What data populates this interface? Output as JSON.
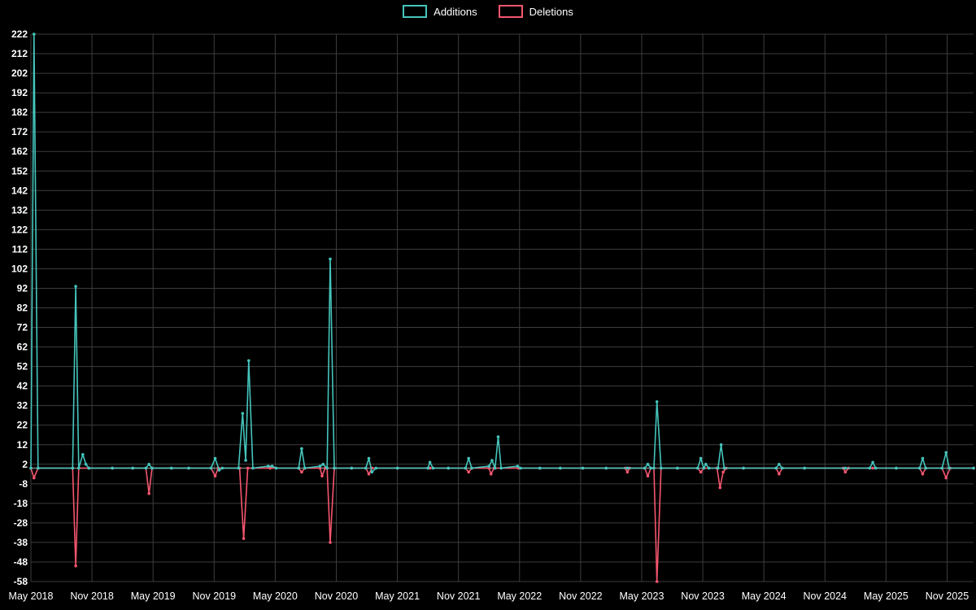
{
  "chart_data": {
    "type": "line",
    "title": "",
    "legend_position": "top-center",
    "background_color": "#000000",
    "grid_color": "#3d3d3d",
    "zero_line_color": "#aaaaaa",
    "text_color": "#ffffff",
    "grid": true,
    "x_axis": {
      "min": 0,
      "max": 92.6,
      "unit": "months since May 2018",
      "tick_values": [
        0,
        6,
        12,
        18,
        24,
        30,
        36,
        42,
        48,
        54,
        60,
        66,
        72,
        78,
        84,
        90
      ],
      "tick_labels": [
        "May 2018",
        "Nov 2018",
        "May 2019",
        "Nov 2019",
        "May 2020",
        "Nov 2020",
        "May 2021",
        "Nov 2021",
        "May 2022",
        "Nov 2022",
        "May 2023",
        "Nov 2023",
        "May 2024",
        "Nov 2024",
        "May 2025",
        "Nov 2025"
      ]
    },
    "y_axis": {
      "min": -58,
      "max": 222,
      "tick_step": 10,
      "tick_values": [
        222,
        212,
        202,
        192,
        182,
        172,
        162,
        152,
        142,
        132,
        122,
        112,
        102,
        92,
        82,
        72,
        62,
        52,
        42,
        32,
        22,
        12,
        2,
        -8,
        -18,
        -28,
        -38,
        -48,
        -58
      ]
    },
    "series": [
      {
        "name": "Additions",
        "color": "#45c5bc",
        "points": [
          [
            0,
            0
          ],
          [
            0.3,
            222
          ],
          [
            0.7,
            0
          ],
          [
            4.1,
            0
          ],
          [
            4.4,
            93
          ],
          [
            4.7,
            0
          ],
          [
            5.1,
            7
          ],
          [
            5.4,
            2
          ],
          [
            5.7,
            0
          ],
          [
            8,
            0
          ],
          [
            10,
            0
          ],
          [
            11.3,
            0
          ],
          [
            11.6,
            2
          ],
          [
            11.9,
            0
          ],
          [
            13.8,
            0
          ],
          [
            15.5,
            0
          ],
          [
            17.7,
            0
          ],
          [
            18.1,
            5
          ],
          [
            18.5,
            -1
          ],
          [
            18.8,
            0
          ],
          [
            20.4,
            0
          ],
          [
            20.8,
            28
          ],
          [
            21.1,
            4
          ],
          [
            21.4,
            55
          ],
          [
            21.8,
            0
          ],
          [
            23.3,
            1
          ],
          [
            23.7,
            1
          ],
          [
            24.1,
            0
          ],
          [
            26.3,
            0
          ],
          [
            26.6,
            10
          ],
          [
            26.9,
            0
          ],
          [
            28.4,
            1
          ],
          [
            28.7,
            2
          ],
          [
            29.1,
            0
          ],
          [
            29.4,
            107
          ],
          [
            29.8,
            0
          ],
          [
            31.5,
            0
          ],
          [
            32.9,
            0
          ],
          [
            33.2,
            5
          ],
          [
            33.5,
            -2
          ],
          [
            33.9,
            0
          ],
          [
            36,
            0
          ],
          [
            39,
            0
          ],
          [
            39.2,
            3
          ],
          [
            39.5,
            0
          ],
          [
            41,
            0
          ],
          [
            42.7,
            0
          ],
          [
            43,
            5
          ],
          [
            43.3,
            0
          ],
          [
            45,
            1
          ],
          [
            45.3,
            4
          ],
          [
            45.6,
            0
          ],
          [
            45.9,
            16
          ],
          [
            46.2,
            0
          ],
          [
            47.8,
            1
          ],
          [
            48.1,
            0
          ],
          [
            50,
            0
          ],
          [
            52,
            0
          ],
          [
            54.2,
            0
          ],
          [
            56.5,
            0
          ],
          [
            58.6,
            0
          ],
          [
            60.3,
            0
          ],
          [
            60.6,
            2
          ],
          [
            60.9,
            0
          ],
          [
            61.2,
            0
          ],
          [
            61.5,
            34
          ],
          [
            61.9,
            0
          ],
          [
            63.5,
            0
          ],
          [
            65.5,
            0
          ],
          [
            65.8,
            5
          ],
          [
            66.1,
            0
          ],
          [
            66.3,
            2
          ],
          [
            66.6,
            0
          ],
          [
            67.5,
            0
          ],
          [
            67.8,
            12
          ],
          [
            68.1,
            0
          ],
          [
            70,
            0
          ],
          [
            73.2,
            0
          ],
          [
            73.5,
            2
          ],
          [
            73.8,
            0
          ],
          [
            76,
            0
          ],
          [
            80,
            0
          ],
          [
            82.4,
            0
          ],
          [
            82.7,
            3
          ],
          [
            83,
            0
          ],
          [
            85,
            0
          ],
          [
            87.3,
            0
          ],
          [
            87.6,
            5
          ],
          [
            87.9,
            0
          ],
          [
            89.5,
            0
          ],
          [
            89.9,
            8
          ],
          [
            90.2,
            0
          ],
          [
            92.6,
            0
          ]
        ]
      },
      {
        "name": "Deletions",
        "color": "#f4566e",
        "points": [
          [
            0,
            0
          ],
          [
            0.3,
            -5
          ],
          [
            0.7,
            0
          ],
          [
            4.1,
            0
          ],
          [
            4.4,
            -50
          ],
          [
            4.7,
            0
          ],
          [
            5.7,
            0
          ],
          [
            8,
            0
          ],
          [
            10,
            0
          ],
          [
            11.3,
            0
          ],
          [
            11.6,
            -13
          ],
          [
            11.9,
            0
          ],
          [
            13.8,
            0
          ],
          [
            15.5,
            0
          ],
          [
            17.7,
            0
          ],
          [
            18.1,
            -4
          ],
          [
            18.4,
            0
          ],
          [
            20.5,
            0
          ],
          [
            20.9,
            -36
          ],
          [
            21.3,
            0
          ],
          [
            23.5,
            0
          ],
          [
            26.3,
            0
          ],
          [
            26.6,
            -2
          ],
          [
            26.9,
            0
          ],
          [
            28.4,
            0
          ],
          [
            28.6,
            -4
          ],
          [
            28.9,
            0
          ],
          [
            29.1,
            0
          ],
          [
            29.4,
            -38
          ],
          [
            29.8,
            0
          ],
          [
            31.5,
            0
          ],
          [
            32.9,
            0
          ],
          [
            33.2,
            -3
          ],
          [
            33.5,
            0
          ],
          [
            36,
            0
          ],
          [
            39.2,
            0
          ],
          [
            41,
            0
          ],
          [
            42.7,
            0
          ],
          [
            43,
            -2
          ],
          [
            43.3,
            0
          ],
          [
            45,
            0
          ],
          [
            45.2,
            -3
          ],
          [
            45.5,
            0
          ],
          [
            47.9,
            0
          ],
          [
            50,
            0
          ],
          [
            52,
            0
          ],
          [
            54.2,
            0
          ],
          [
            56.5,
            0
          ],
          [
            58.4,
            0
          ],
          [
            58.6,
            -2
          ],
          [
            58.8,
            0
          ],
          [
            60.3,
            0
          ],
          [
            60.6,
            -4
          ],
          [
            60.9,
            0
          ],
          [
            61.2,
            0
          ],
          [
            61.5,
            -58
          ],
          [
            61.9,
            0
          ],
          [
            63.5,
            0
          ],
          [
            65.5,
            0
          ],
          [
            65.8,
            -2
          ],
          [
            66.1,
            0
          ],
          [
            67.4,
            0
          ],
          [
            67.7,
            -10
          ],
          [
            68,
            -2
          ],
          [
            68.3,
            0
          ],
          [
            70,
            0
          ],
          [
            73.2,
            0
          ],
          [
            73.5,
            -3
          ],
          [
            73.8,
            0
          ],
          [
            76,
            0
          ],
          [
            79.8,
            0
          ],
          [
            80,
            -2
          ],
          [
            80.3,
            0
          ],
          [
            82.7,
            0
          ],
          [
            85,
            0
          ],
          [
            87.3,
            0
          ],
          [
            87.6,
            -3
          ],
          [
            87.9,
            0
          ],
          [
            89.5,
            0
          ],
          [
            89.9,
            -5
          ],
          [
            90.3,
            0
          ],
          [
            92.6,
            0
          ]
        ]
      }
    ]
  }
}
